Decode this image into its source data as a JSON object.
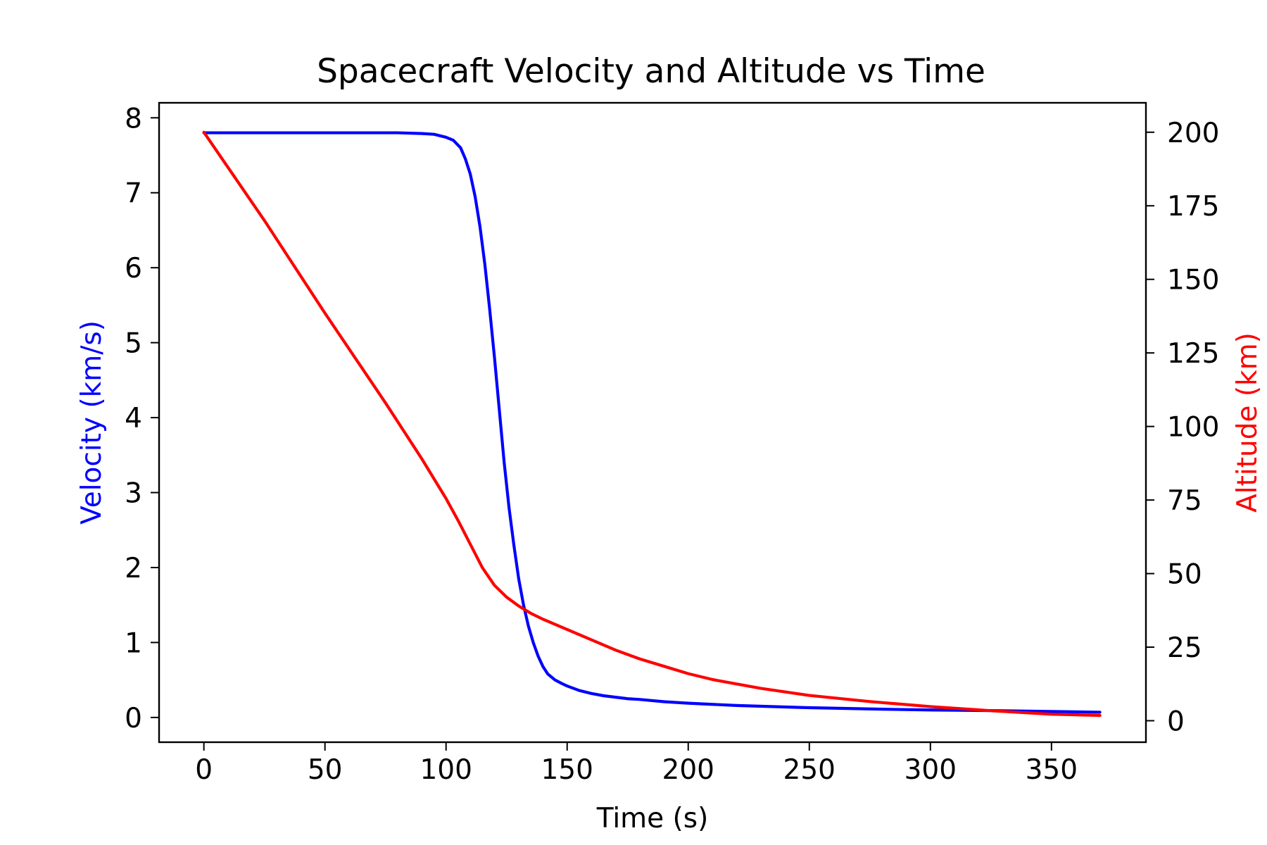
{
  "chart_data": {
    "type": "line",
    "title": "Spacecraft Velocity and Altitude vs Time",
    "xlabel": "Time (s)",
    "ylabel_left": "Velocity (km/s)",
    "ylabel_right": "Altitude (km)",
    "xlim": [
      -18.5,
      389
    ],
    "ylim_left": [
      -0.33,
      8.2
    ],
    "ylim_right": [
      -7.3,
      210
    ],
    "x_ticks": [
      0,
      50,
      100,
      150,
      200,
      250,
      300,
      350
    ],
    "y_ticks_left": [
      0,
      1,
      2,
      3,
      4,
      5,
      6,
      7,
      8
    ],
    "y_ticks_right": [
      0,
      25,
      50,
      75,
      100,
      125,
      150,
      175,
      200
    ],
    "grid": false,
    "colors": {
      "velocity": "#0000ff",
      "altitude": "#ff0000",
      "axis": "#000000"
    },
    "series": [
      {
        "axis": "left",
        "color": "#0000ff",
        "x": [
          0,
          50,
          80,
          90,
          95,
          100,
          103,
          106,
          108,
          110,
          112,
          114,
          116,
          118,
          120,
          122,
          124,
          126,
          128,
          130,
          132,
          134,
          136,
          138,
          140,
          142,
          145,
          148,
          150,
          155,
          160,
          165,
          170,
          175,
          180,
          190,
          200,
          220,
          250,
          280,
          300,
          330,
          370
        ],
        "y": [
          7.8,
          7.8,
          7.8,
          7.79,
          7.78,
          7.74,
          7.7,
          7.6,
          7.45,
          7.25,
          6.95,
          6.55,
          6.05,
          5.45,
          4.8,
          4.1,
          3.4,
          2.8,
          2.3,
          1.85,
          1.5,
          1.22,
          1.0,
          0.82,
          0.68,
          0.58,
          0.5,
          0.45,
          0.42,
          0.36,
          0.32,
          0.29,
          0.27,
          0.25,
          0.24,
          0.21,
          0.19,
          0.16,
          0.13,
          0.11,
          0.1,
          0.09,
          0.07
        ]
      },
      {
        "axis": "right",
        "color": "#ff0000",
        "x": [
          0,
          25,
          50,
          75,
          90,
          100,
          105,
          110,
          115,
          120,
          125,
          130,
          135,
          140,
          150,
          160,
          170,
          180,
          190,
          200,
          210,
          220,
          230,
          250,
          275,
          300,
          325,
          350,
          370
        ],
        "y": [
          200,
          170,
          138.5,
          108,
          89,
          75.5,
          68,
          60,
          52,
          46,
          42,
          39,
          36.5,
          34.5,
          31,
          27.5,
          24,
          21,
          18.5,
          16,
          14,
          12.5,
          11,
          8.6,
          6.5,
          4.8,
          3.4,
          2.2,
          1.8
        ]
      }
    ]
  }
}
